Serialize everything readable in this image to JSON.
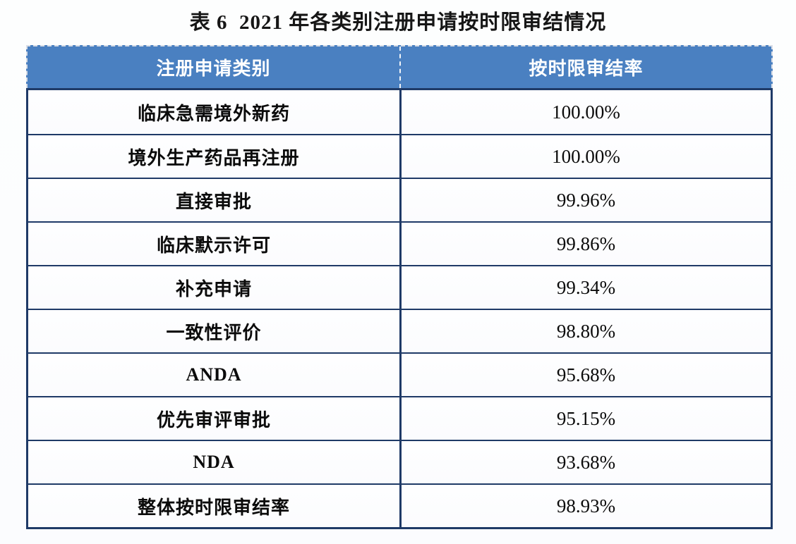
{
  "title": "表 6  2021 年各类别注册申请按时限审结情况",
  "table": {
    "headers": {
      "category": "注册申请类别",
      "rate": "按时限审结率"
    },
    "rows": [
      {
        "category": "临床急需境外新药",
        "rate": "100.00%"
      },
      {
        "category": "境外生产药品再注册",
        "rate": "100.00%"
      },
      {
        "category": "直接审批",
        "rate": "99.96%"
      },
      {
        "category": "临床默示许可",
        "rate": "99.86%"
      },
      {
        "category": "补充申请",
        "rate": "99.34%"
      },
      {
        "category": "一致性评价",
        "rate": "98.80%"
      },
      {
        "category": "ANDA",
        "rate": "95.68%"
      },
      {
        "category": "优先审评审批",
        "rate": "95.15%"
      },
      {
        "category": "NDA",
        "rate": "93.68%"
      },
      {
        "category": "整体按时限审结率",
        "rate": "98.93%"
      }
    ]
  },
  "colors": {
    "header_bg": "#4a80c1",
    "header_text": "#ffffff",
    "border": "#1f3a67",
    "body_bg": "#fdfdfe",
    "page_bg": "#fcfdfe"
  },
  "chart_data": {
    "type": "table",
    "title": "表 6  2021 年各类别注册申请按时限审结情况",
    "columns": [
      "注册申请类别",
      "按时限审结率"
    ],
    "categories": [
      "临床急需境外新药",
      "境外生产药品再注册",
      "直接审批",
      "临床默示许可",
      "补充申请",
      "一致性评价",
      "ANDA",
      "优先审评审批",
      "NDA",
      "整体按时限审结率"
    ],
    "values": [
      100.0,
      100.0,
      99.96,
      99.86,
      99.34,
      98.8,
      95.68,
      95.15,
      93.68,
      98.93
    ],
    "value_unit": "%"
  }
}
